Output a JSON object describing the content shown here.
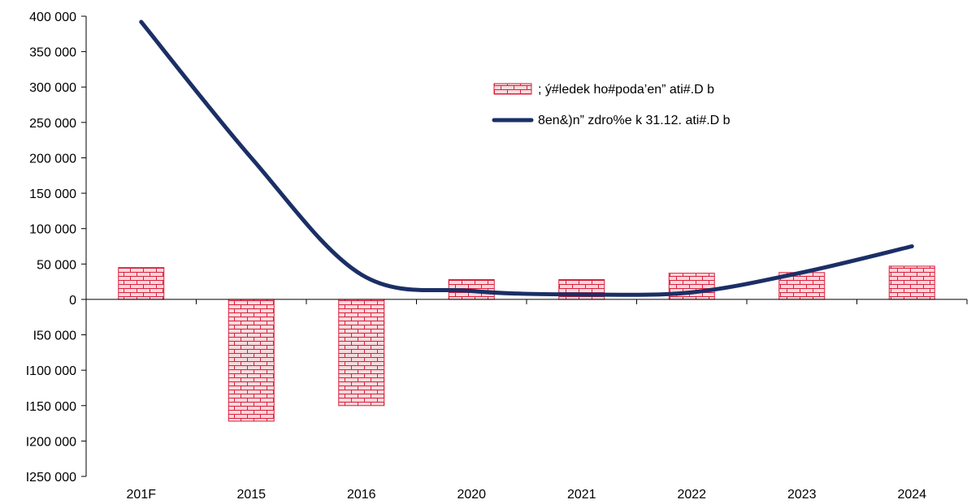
{
  "chart_data": {
    "type": "bar",
    "categories": [
      "201F",
      "2015",
      "2016",
      "2020",
      "2021",
      "2022",
      "2023",
      "2024"
    ],
    "series": [
      {
        "name": "; ý#ledek ho#poda’en” ati#.D b",
        "type": "bar",
        "values": [
          45000,
          -172000,
          -150000,
          28000,
          28000,
          37000,
          38000,
          47000
        ]
      },
      {
        "name": "8en&)n” zdro%e k 31.12. ati#.D b",
        "type": "line",
        "values": [
          392000,
          200000,
          35000,
          12000,
          7000,
          10000,
          38000,
          75000
        ]
      }
    ],
    "ylim": [
      -250000,
      400000
    ],
    "yticks": [
      400000,
      350000,
      300000,
      250000,
      200000,
      150000,
      100000,
      50000,
      0,
      -50000,
      -100000,
      -150000,
      -200000,
      -250000
    ],
    "ytick_labels": [
      "400 000",
      "350 000",
      "300 000",
      "250 000",
      "200 000",
      "150 000",
      "100 000",
      "50 000",
      "0",
      "I50 000",
      "I100 000",
      "I150 000",
      "I200 000",
      "I250 000"
    ],
    "grid": false,
    "legend_position": "top-right",
    "colors": {
      "bar_fill": "#f6dadd",
      "bar_brick": "#dc1e3c",
      "line": "#1b2f66",
      "axis": "#000000"
    }
  }
}
